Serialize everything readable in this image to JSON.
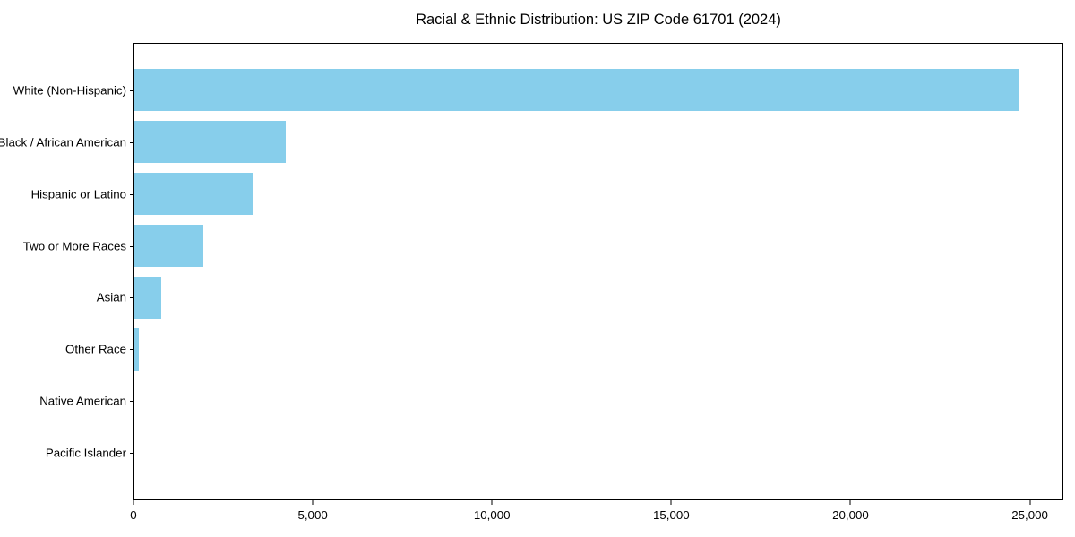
{
  "chart_data": {
    "type": "bar",
    "orientation": "horizontal",
    "title": "Racial & Ethnic Distribution: US ZIP Code 61701 (2024)",
    "categories": [
      "White (Non-Hispanic)",
      "Black / African American",
      "Hispanic or Latino",
      "Two or More Races",
      "Asian",
      "Other Race",
      "Native American",
      "Pacific Islander"
    ],
    "values": [
      24700,
      4230,
      3300,
      1920,
      750,
      120,
      0,
      0
    ],
    "bar_color": "#87CEEB",
    "xlabel": "",
    "ylabel": "",
    "xlim": [
      0,
      25935
    ],
    "x_ticks": [
      0,
      5000,
      10000,
      15000,
      20000,
      25000
    ],
    "x_tick_labels": [
      "0",
      "5,000",
      "10,000",
      "15,000",
      "20,000",
      "25,000"
    ],
    "grid": false,
    "legend_position": "none"
  }
}
